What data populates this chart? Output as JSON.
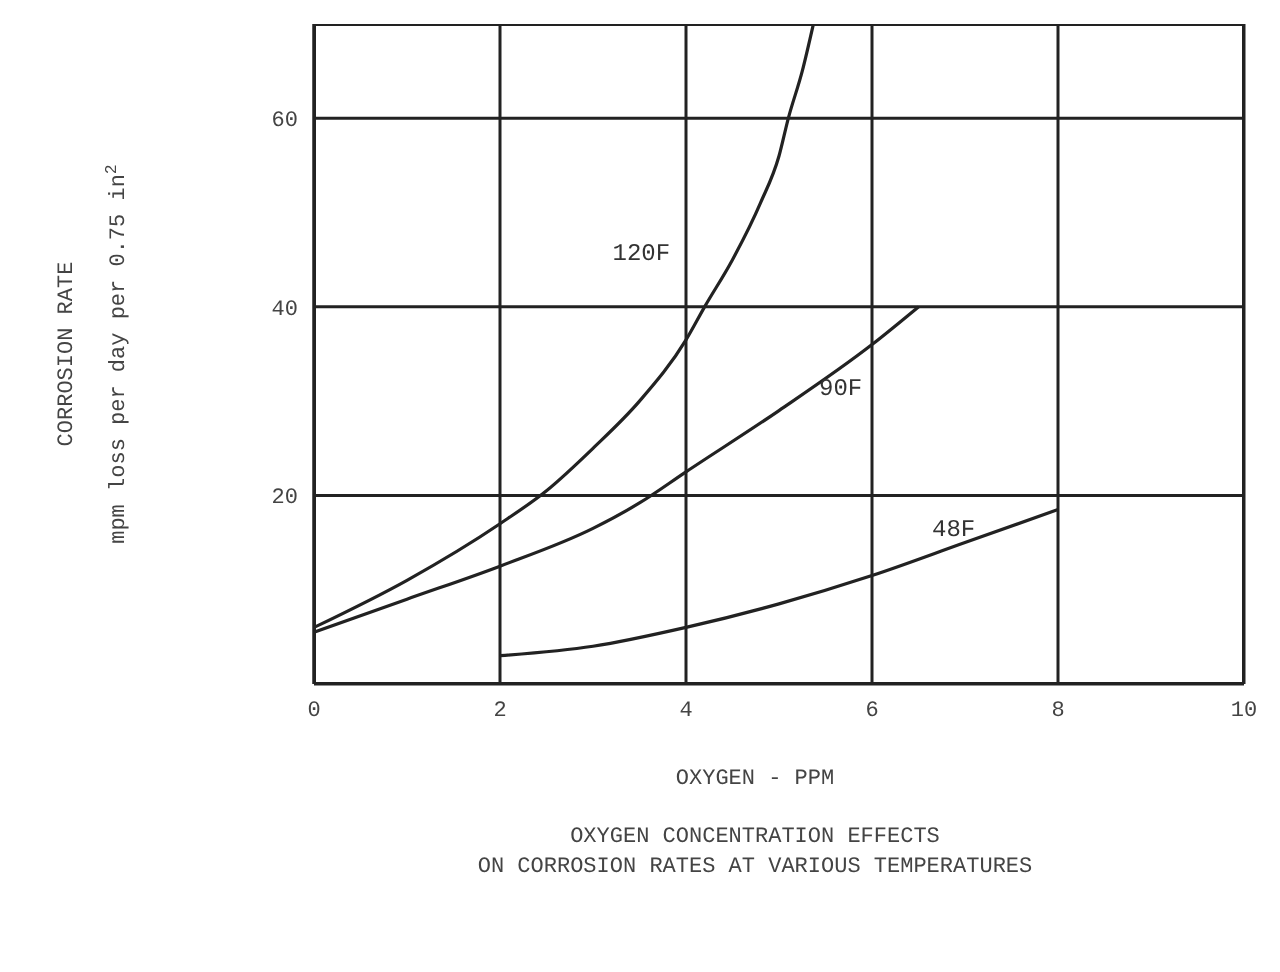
{
  "chart_data": {
    "type": "line",
    "title": "OXYGEN CONCENTRATION EFFECTS\nON CORROSION RATES AT VARIOUS TEMPERATURES",
    "xlabel": "OXYGEN - PPM",
    "ylabel": "CORROSION RATE\nmpm loss per day per 0.75 in$^{2}$",
    "xlim": [
      0,
      10
    ],
    "xticks": [
      0,
      2,
      4,
      6,
      8,
      10
    ],
    "ylim": [
      0,
      70
    ],
    "yticks": [
      20,
      40,
      60
    ],
    "grid": true,
    "legend": false,
    "series": [
      {
        "name": "120F",
        "color": "#222222",
        "x": [
          0,
          1,
          2,
          2.5,
          3,
          3.5,
          4,
          4.2,
          4.5,
          4.8,
          5,
          5.1,
          5.25,
          5.37
        ],
        "values": [
          6,
          11,
          17,
          20.5,
          25,
          30,
          36.5,
          40,
          45,
          51,
          56,
          60,
          65,
          70
        ]
      },
      {
        "name": "90F",
        "color": "#222222",
        "x": [
          0,
          1,
          2,
          3,
          3.5,
          4,
          5,
          6,
          6.5
        ],
        "values": [
          5.5,
          9,
          12.5,
          16.5,
          19.2,
          22.5,
          29,
          36,
          40
        ]
      },
      {
        "name": "48F",
        "color": "#222222",
        "x": [
          2,
          3,
          4,
          5,
          6,
          7,
          8
        ],
        "values": [
          3,
          4,
          6,
          8.5,
          11.5,
          15,
          18.5
        ]
      }
    ]
  }
}
